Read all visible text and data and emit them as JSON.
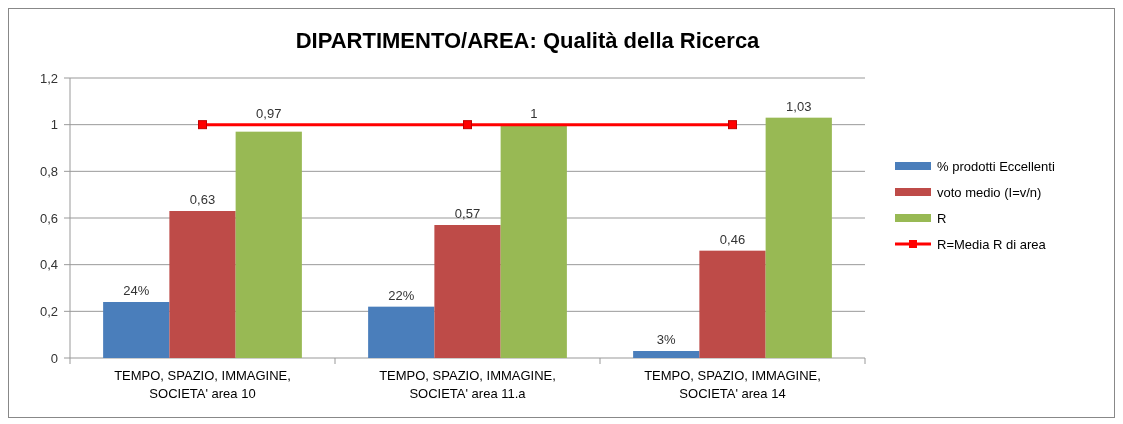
{
  "chart_data": {
    "type": "bar",
    "title": "DIPARTIMENTO/AREA: Qualità della Ricerca",
    "categories": [
      "TEMPO, SPAZIO, IMMAGINE, SOCIETA' area 10",
      "TEMPO, SPAZIO, IMMAGINE, SOCIETA' area 11.a",
      "TEMPO, SPAZIO, IMMAGINE, SOCIETA' area 14"
    ],
    "series": [
      {
        "name": "% prodotti Eccellenti",
        "color": "#4a7ebb",
        "values": [
          0.24,
          0.22,
          0.03
        ],
        "value_labels": [
          "24%",
          "22%",
          "3%"
        ]
      },
      {
        "name": "voto medio (I=v/n)",
        "color": "#be4b48",
        "values": [
          0.63,
          0.57,
          0.46
        ],
        "value_labels": [
          "0,63",
          "0,57",
          "0,46"
        ]
      },
      {
        "name": "R",
        "color": "#98b954",
        "values": [
          0.97,
          1,
          1.03
        ],
        "value_labels": [
          "0,97",
          "1",
          "1,03"
        ]
      },
      {
        "name": "R=Media R di area",
        "type": "line",
        "color": "#ff0000",
        "values": [
          1,
          1,
          1
        ],
        "marker": "square"
      }
    ],
    "ylim": [
      0,
      1.2
    ],
    "yticks": [
      0,
      {
        "value": 0.2,
        "label": "0,2"
      },
      {
        "value": 0.4,
        "label": "0,4"
      },
      {
        "value": 0.6,
        "label": "0,6"
      },
      {
        "value": 0.8,
        "label": "0,8"
      },
      1,
      {
        "value": 1.2,
        "label": "1,2"
      }
    ],
    "grid": "y",
    "legend": "right"
  }
}
